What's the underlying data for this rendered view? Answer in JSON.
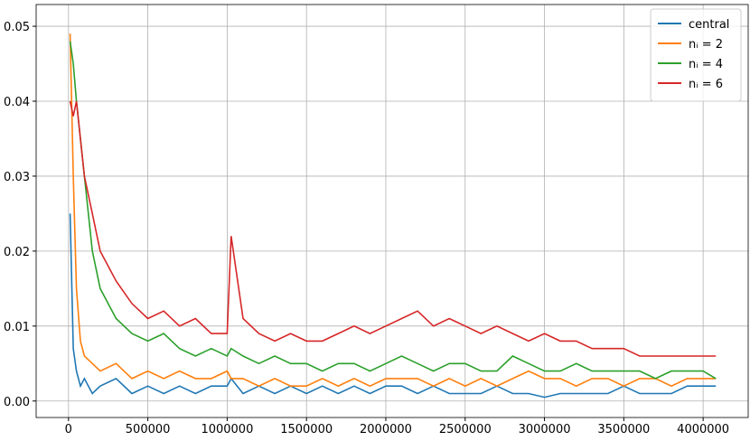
{
  "chart_data": {
    "type": "line",
    "x": [
      10000,
      30000,
      50000,
      75000,
      100000,
      150000,
      200000,
      300000,
      400000,
      500000,
      600000,
      700000,
      800000,
      900000,
      1000000,
      1025000,
      1100000,
      1200000,
      1300000,
      1400000,
      1500000,
      1600000,
      1700000,
      1800000,
      1900000,
      2000000,
      2100000,
      2200000,
      2300000,
      2400000,
      2500000,
      2600000,
      2700000,
      2800000,
      2900000,
      3000000,
      3100000,
      3200000,
      3300000,
      3400000,
      3500000,
      3600000,
      3700000,
      3800000,
      3900000,
      4000000,
      4080000
    ],
    "series": [
      {
        "name": "central",
        "color": "#1f77b4",
        "values": [
          0.025,
          0.007,
          0.004,
          0.002,
          0.003,
          0.001,
          0.002,
          0.003,
          0.001,
          0.002,
          0.001,
          0.002,
          0.001,
          0.002,
          0.002,
          0.003,
          0.001,
          0.002,
          0.001,
          0.002,
          0.001,
          0.002,
          0.001,
          0.002,
          0.001,
          0.002,
          0.002,
          0.001,
          0.002,
          0.001,
          0.001,
          0.001,
          0.002,
          0.001,
          0.001,
          0.0005,
          0.001,
          0.001,
          0.001,
          0.001,
          0.002,
          0.001,
          0.001,
          0.001,
          0.002,
          0.002,
          0.002
        ]
      },
      {
        "name": "nᵢ = 2",
        "color": "#ff7f0e",
        "values": [
          0.049,
          0.03,
          0.015,
          0.008,
          0.006,
          0.005,
          0.004,
          0.005,
          0.003,
          0.004,
          0.003,
          0.004,
          0.003,
          0.003,
          0.004,
          0.003,
          0.003,
          0.002,
          0.003,
          0.002,
          0.002,
          0.003,
          0.002,
          0.003,
          0.002,
          0.003,
          0.003,
          0.003,
          0.002,
          0.003,
          0.002,
          0.003,
          0.002,
          0.003,
          0.004,
          0.003,
          0.003,
          0.002,
          0.003,
          0.003,
          0.002,
          0.003,
          0.003,
          0.002,
          0.003,
          0.003,
          0.003
        ]
      },
      {
        "name": "nᵢ = 4",
        "color": "#2ca02c",
        "values": [
          0.048,
          0.045,
          0.04,
          0.035,
          0.03,
          0.02,
          0.015,
          0.011,
          0.009,
          0.008,
          0.009,
          0.007,
          0.006,
          0.007,
          0.006,
          0.007,
          0.006,
          0.005,
          0.006,
          0.005,
          0.005,
          0.004,
          0.005,
          0.005,
          0.004,
          0.005,
          0.006,
          0.005,
          0.004,
          0.005,
          0.005,
          0.004,
          0.004,
          0.006,
          0.005,
          0.004,
          0.004,
          0.005,
          0.004,
          0.004,
          0.004,
          0.004,
          0.003,
          0.004,
          0.004,
          0.004,
          0.003
        ]
      },
      {
        "name": "nᵢ = 6",
        "color": "#d62728",
        "values": [
          0.04,
          0.038,
          0.04,
          0.035,
          0.03,
          0.025,
          0.02,
          0.016,
          0.013,
          0.011,
          0.012,
          0.01,
          0.011,
          0.009,
          0.009,
          0.022,
          0.011,
          0.009,
          0.008,
          0.009,
          0.008,
          0.008,
          0.009,
          0.01,
          0.009,
          0.01,
          0.011,
          0.012,
          0.01,
          0.011,
          0.01,
          0.009,
          0.01,
          0.009,
          0.008,
          0.009,
          0.008,
          0.008,
          0.007,
          0.007,
          0.007,
          0.006,
          0.006,
          0.006,
          0.006,
          0.006,
          0.006
        ]
      }
    ],
    "xlim": [
      -204000,
      4284000
    ],
    "ylim": [
      -0.0022,
      0.0529
    ],
    "xticks": [
      0,
      500000,
      1000000,
      1500000,
      2000000,
      2500000,
      3000000,
      3500000,
      4000000
    ],
    "yticks": [
      {
        "value": 0,
        "label": "0.00"
      },
      {
        "value": 0.01,
        "label": "0.01"
      },
      {
        "value": 0.02,
        "label": "0.02"
      },
      {
        "value": 0.03,
        "label": "0.03"
      },
      {
        "value": 0.04,
        "label": "0.04"
      },
      {
        "value": 0.05,
        "label": "0.05"
      }
    ],
    "grid": true,
    "legend": "upper right"
  }
}
